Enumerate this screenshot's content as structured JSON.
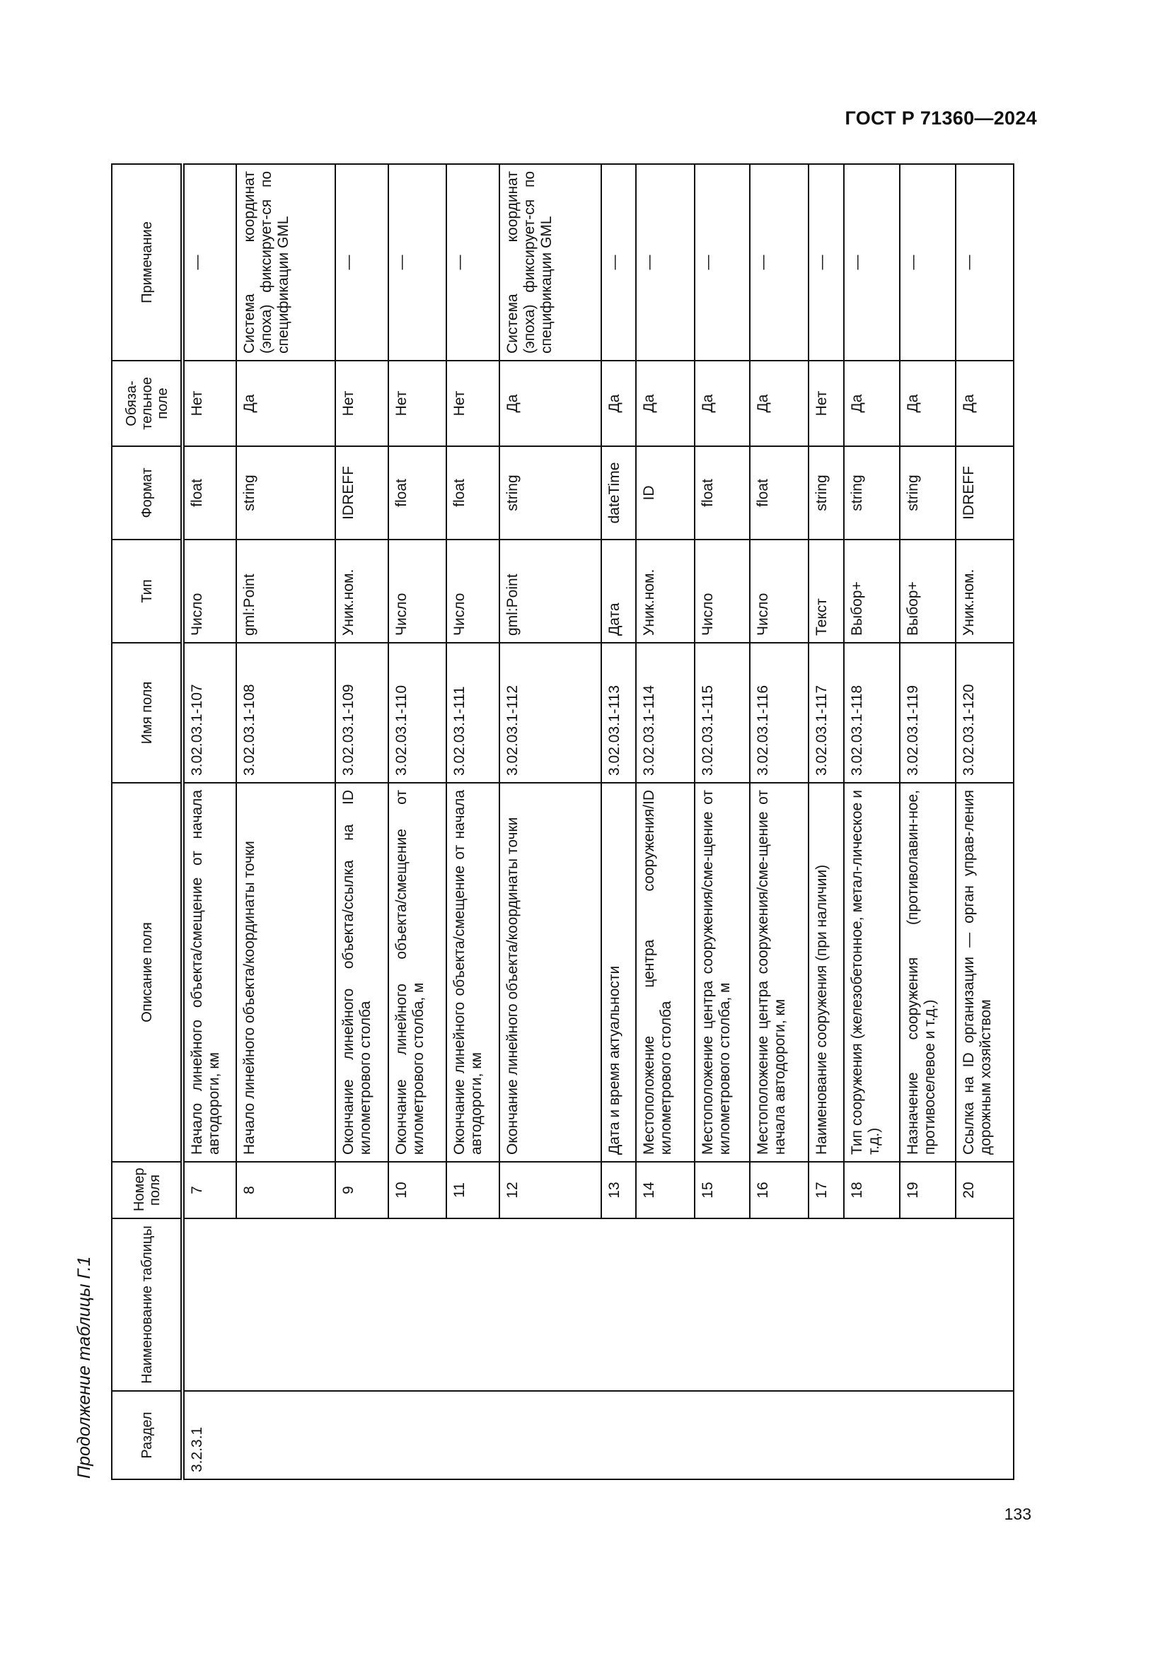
{
  "header": {
    "doc_code": "ГОСТ Р 71360—2024"
  },
  "caption": "Продолжение таблицы Г.1",
  "page_number": "133",
  "table": {
    "columns": [
      "Раздел",
      "Наименование таблицы",
      "Номер поля",
      "Описание поля",
      "Имя поля",
      "Тип",
      "Формат",
      "Обяза-тельное поле",
      "Примечание"
    ],
    "section": "3.2.3.1",
    "table_name": "",
    "rows": [
      {
        "num": "7",
        "desc": "Начало линейного объекта/смещение от начала автодороги, км",
        "name": "3.02.03.1-107",
        "type": "Число",
        "format": "float",
        "required": "Нет",
        "note": "—"
      },
      {
        "num": "8",
        "desc": "Начало линейного объекта/координаты точки",
        "name": "3.02.03.1-108",
        "type": "gml:Point",
        "format": "string",
        "required": "Да",
        "note": "Система координат (эпоха) фиксирует-ся по спецификации GML"
      },
      {
        "num": "9",
        "desc": "Окончание линейного объекта/ссылка на ID километрового столба",
        "name": "3.02.03.1-109",
        "type": "Уник.ном.",
        "format": "IDREFF",
        "required": "Нет",
        "note": "—"
      },
      {
        "num": "10",
        "desc": "Окончание линейного объекта/смещение от километрового столба, м",
        "name": "3.02.03.1-110",
        "type": "Число",
        "format": "float",
        "required": "Нет",
        "note": "—"
      },
      {
        "num": "11",
        "desc": "Окончание линейного объекта/смещение от начала автодороги, км",
        "name": "3.02.03.1-111",
        "type": "Число",
        "format": "float",
        "required": "Нет",
        "note": "—"
      },
      {
        "num": "12",
        "desc": "Окончание линейного объекта/координаты точки",
        "name": "3.02.03.1-112",
        "type": "gml:Point",
        "format": "string",
        "required": "Да",
        "note": "Система координат (эпоха) фиксирует-ся по спецификации GML"
      },
      {
        "num": "13",
        "desc": "Дата и время актуальности",
        "name": "3.02.03.1-113",
        "type": "Дата",
        "format": "dateTime",
        "required": "Да",
        "note": "—"
      },
      {
        "num": "14",
        "desc": "Местоположение центра сооружения/ID километрового столба",
        "name": "3.02.03.1-114",
        "type": "Уник.ном.",
        "format": "ID",
        "required": "Да",
        "note": "—"
      },
      {
        "num": "15",
        "desc": "Местоположение центра сооружения/сме-щение от километрового столба, м",
        "name": "3.02.03.1-115",
        "type": "Число",
        "format": "float",
        "required": "Да",
        "note": "—"
      },
      {
        "num": "16",
        "desc": "Местоположение центра сооружения/сме-щение от начала автодороги, км",
        "name": "3.02.03.1-116",
        "type": "Число",
        "format": "float",
        "required": "Да",
        "note": "—"
      },
      {
        "num": "17",
        "desc": "Наименование сооружения (при наличии)",
        "name": "3.02.03.1-117",
        "type": "Текст",
        "format": "string",
        "required": "Нет",
        "note": "—"
      },
      {
        "num": "18",
        "desc": "Тип сооружения (железобетонное, метал-лическое и т.д.)",
        "name": "3.02.03.1-118",
        "type": "Выбор+",
        "format": "string",
        "required": "Да",
        "note": "—"
      },
      {
        "num": "19",
        "desc": "Назначение сооружения (противолавин-ное, противоселевое и т.д.)",
        "name": "3.02.03.1-119",
        "type": "Выбор+",
        "format": "string",
        "required": "Да",
        "note": "—"
      },
      {
        "num": "20",
        "desc": "Ссылка на ID организации — орган управ-ления дорожным хозяйством",
        "name": "3.02.03.1-120",
        "type": "Уник.ном.",
        "format": "IDREFF",
        "required": "Да",
        "note": "—"
      }
    ]
  }
}
